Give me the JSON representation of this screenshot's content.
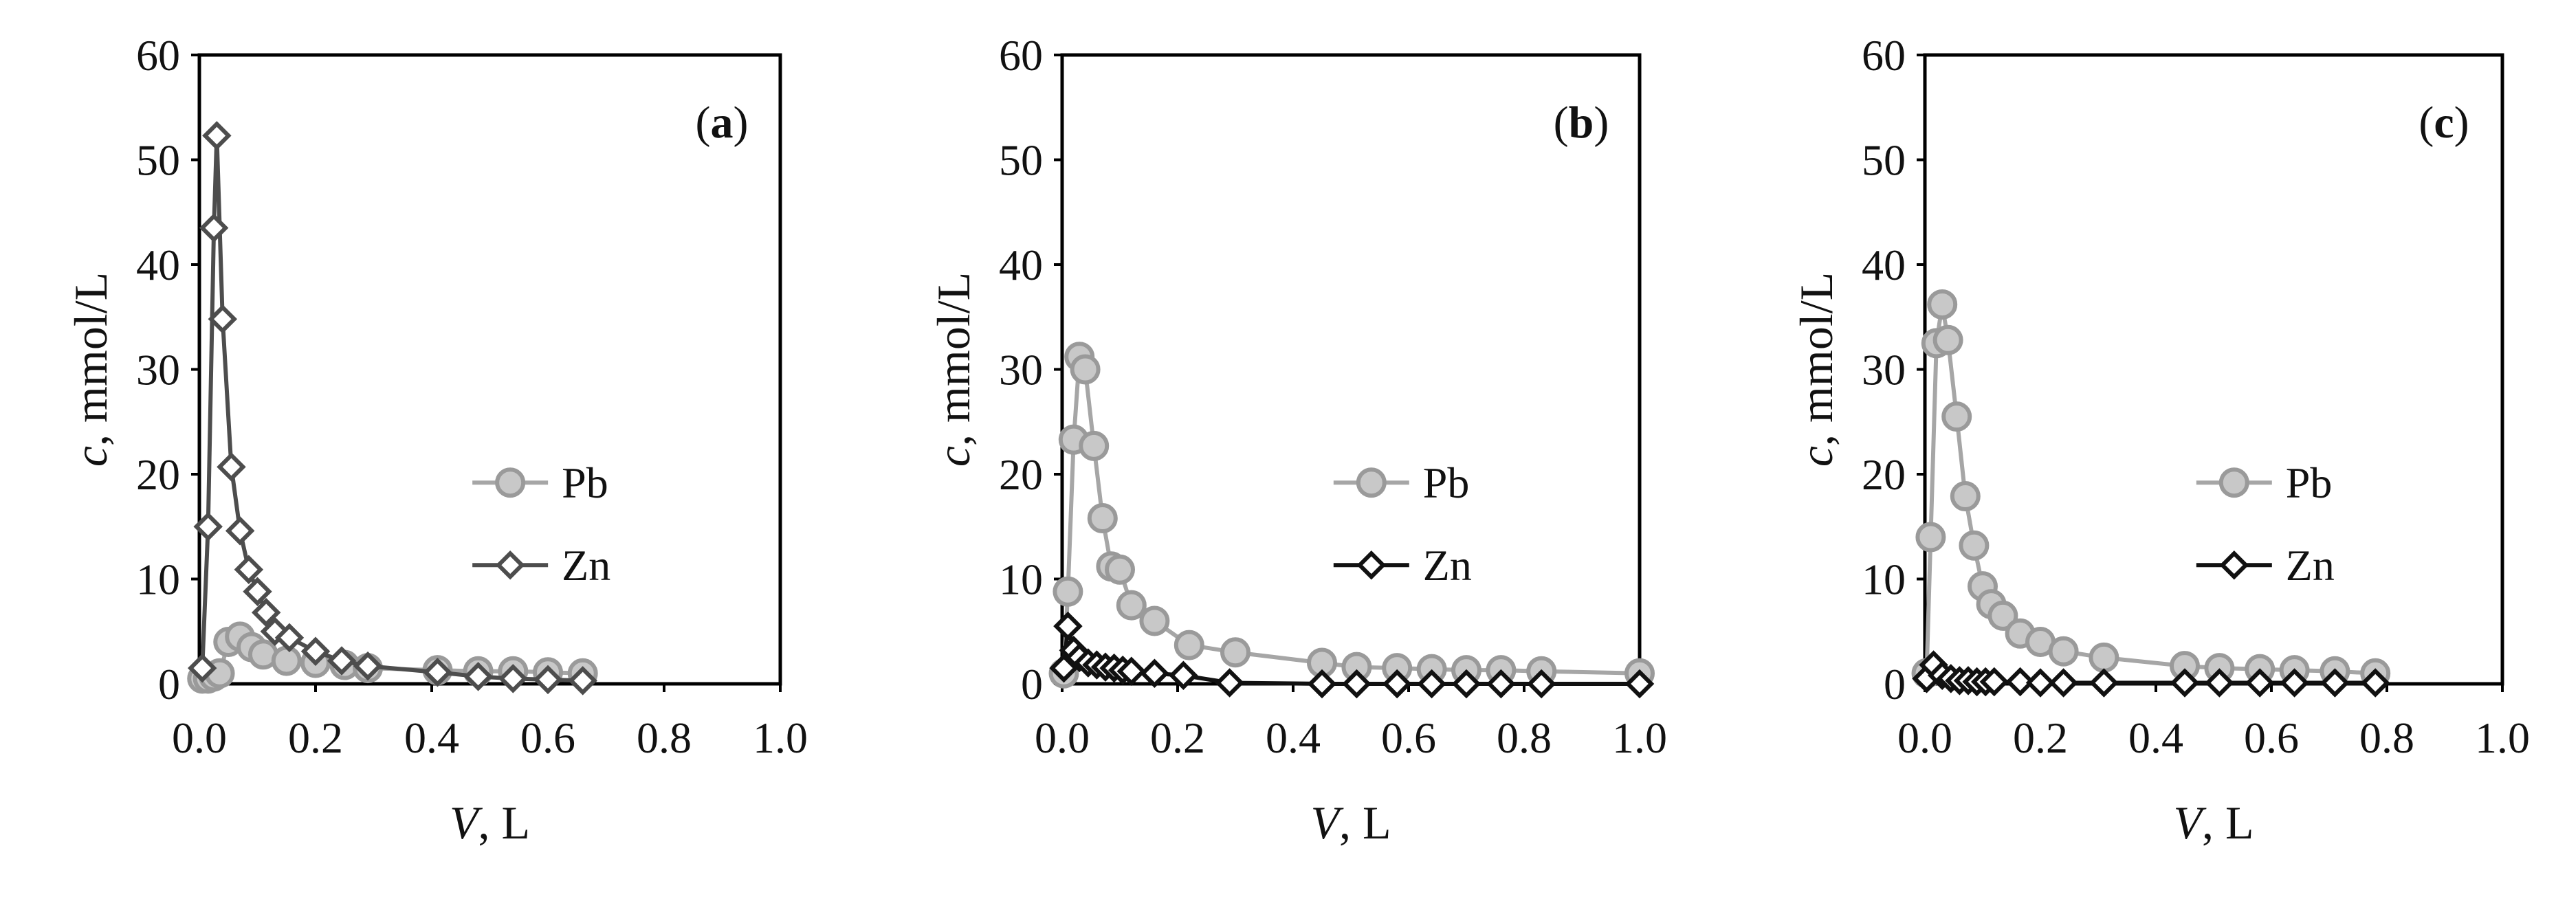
{
  "chart_data": [
    {
      "type": "line",
      "panel_label": "a",
      "xlabel_italic": "V",
      "xlabel_rest": ", L",
      "ylabel_italic": "c",
      "ylabel_rest": ", mmol/L",
      "xlim": [
        0,
        1.0
      ],
      "ylim": [
        0,
        60
      ],
      "xticks": [
        "0.0",
        "0.2",
        "0.4",
        "0.6",
        "0.8",
        "1.0"
      ],
      "yticks": [
        "0",
        "10",
        "20",
        "30",
        "40",
        "50",
        "60"
      ],
      "legend": "right",
      "grid": false,
      "series": [
        {
          "name": "Pb",
          "color": "#a6a6a6",
          "marker": "circle",
          "x": [
            0.005,
            0.015,
            0.025,
            0.035,
            0.05,
            0.07,
            0.09,
            0.11,
            0.15,
            0.2,
            0.25,
            0.29,
            0.41,
            0.48,
            0.54,
            0.6,
            0.66
          ],
          "y": [
            0.5,
            0.5,
            0.7,
            1.0,
            4.0,
            4.5,
            3.5,
            2.8,
            2.2,
            2.0,
            1.8,
            1.5,
            1.3,
            1.2,
            1.2,
            1.1,
            1.0
          ]
        },
        {
          "name": "Zn",
          "color": "#4d4d4d",
          "marker": "diamond",
          "x": [
            0.005,
            0.015,
            0.025,
            0.03,
            0.04,
            0.055,
            0.07,
            0.085,
            0.1,
            0.115,
            0.13,
            0.155,
            0.2,
            0.245,
            0.29,
            0.41,
            0.48,
            0.54,
            0.6,
            0.66
          ],
          "y": [
            1.5,
            15.0,
            43.5,
            52.3,
            34.8,
            20.7,
            14.6,
            10.9,
            8.8,
            6.8,
            5.0,
            4.4,
            3.1,
            2.2,
            1.7,
            1.1,
            0.7,
            0.5,
            0.4,
            0.3
          ]
        }
      ]
    },
    {
      "type": "line",
      "panel_label": "b",
      "xlabel_italic": "V",
      "xlabel_rest": ", L",
      "ylabel_italic": "c",
      "ylabel_rest": ", mmol/L",
      "xlim": [
        0,
        1.0
      ],
      "ylim": [
        0,
        60
      ],
      "xticks": [
        "0.0",
        "0.2",
        "0.4",
        "0.6",
        "0.8",
        "1.0"
      ],
      "yticks": [
        "0",
        "10",
        "20",
        "30",
        "40",
        "50",
        "60"
      ],
      "legend": "right",
      "grid": false,
      "series": [
        {
          "name": "Pb",
          "color": "#a6a6a6",
          "marker": "circle",
          "x": [
            0.003,
            0.01,
            0.02,
            0.03,
            0.04,
            0.055,
            0.07,
            0.085,
            0.1,
            0.12,
            0.16,
            0.22,
            0.3,
            0.45,
            0.51,
            0.58,
            0.64,
            0.7,
            0.76,
            0.83,
            1.0
          ],
          "y": [
            1.0,
            8.8,
            23.3,
            31.2,
            30.0,
            22.7,
            15.8,
            11.2,
            10.9,
            7.5,
            6.0,
            3.7,
            3.0,
            2.0,
            1.6,
            1.5,
            1.4,
            1.3,
            1.3,
            1.2,
            1.0
          ]
        },
        {
          "name": "Zn",
          "color": "#111111",
          "marker": "diamond",
          "x": [
            0.003,
            0.01,
            0.02,
            0.03,
            0.045,
            0.06,
            0.075,
            0.09,
            0.105,
            0.12,
            0.16,
            0.21,
            0.29,
            0.45,
            0.51,
            0.58,
            0.64,
            0.7,
            0.76,
            0.83,
            1.0
          ],
          "y": [
            1.5,
            5.5,
            3.2,
            2.5,
            2.0,
            1.8,
            1.6,
            1.5,
            1.3,
            1.2,
            1.0,
            0.8,
            0.1,
            0.0,
            0.0,
            0.0,
            0.0,
            0.0,
            0.0,
            0.0,
            0.0
          ]
        }
      ]
    },
    {
      "type": "line",
      "panel_label": "c",
      "xlabel_italic": "V",
      "xlabel_rest": ", L",
      "ylabel_italic": "c",
      "ylabel_rest": ", mmol/L",
      "xlim": [
        0,
        1.0
      ],
      "ylim": [
        0,
        60
      ],
      "xticks": [
        "0.0",
        "0.2",
        "0.4",
        "0.6",
        "0.8",
        "1.0"
      ],
      "yticks": [
        "0",
        "10",
        "20",
        "30",
        "40",
        "50",
        "60"
      ],
      "legend": "right",
      "grid": false,
      "series": [
        {
          "name": "Pb",
          "color": "#a6a6a6",
          "marker": "circle",
          "x": [
            0.003,
            0.01,
            0.02,
            0.03,
            0.04,
            0.055,
            0.07,
            0.085,
            0.1,
            0.115,
            0.135,
            0.165,
            0.2,
            0.24,
            0.31,
            0.45,
            0.51,
            0.58,
            0.64,
            0.71,
            0.78
          ],
          "y": [
            1.0,
            14.0,
            32.5,
            36.2,
            32.8,
            25.5,
            17.9,
            13.2,
            9.3,
            7.6,
            6.5,
            4.8,
            4.0,
            3.1,
            2.5,
            1.7,
            1.5,
            1.4,
            1.3,
            1.2,
            1.0
          ]
        },
        {
          "name": "Zn",
          "color": "#111111",
          "marker": "diamond",
          "x": [
            0.003,
            0.015,
            0.03,
            0.045,
            0.06,
            0.075,
            0.09,
            0.105,
            0.12,
            0.165,
            0.2,
            0.24,
            0.31,
            0.45,
            0.51,
            0.58,
            0.64,
            0.71,
            0.78
          ],
          "y": [
            0.5,
            1.8,
            0.8,
            0.5,
            0.3,
            0.3,
            0.2,
            0.2,
            0.2,
            0.2,
            0.1,
            0.1,
            0.1,
            0.1,
            0.1,
            0.1,
            0.1,
            0.1,
            0.1
          ]
        }
      ]
    }
  ]
}
